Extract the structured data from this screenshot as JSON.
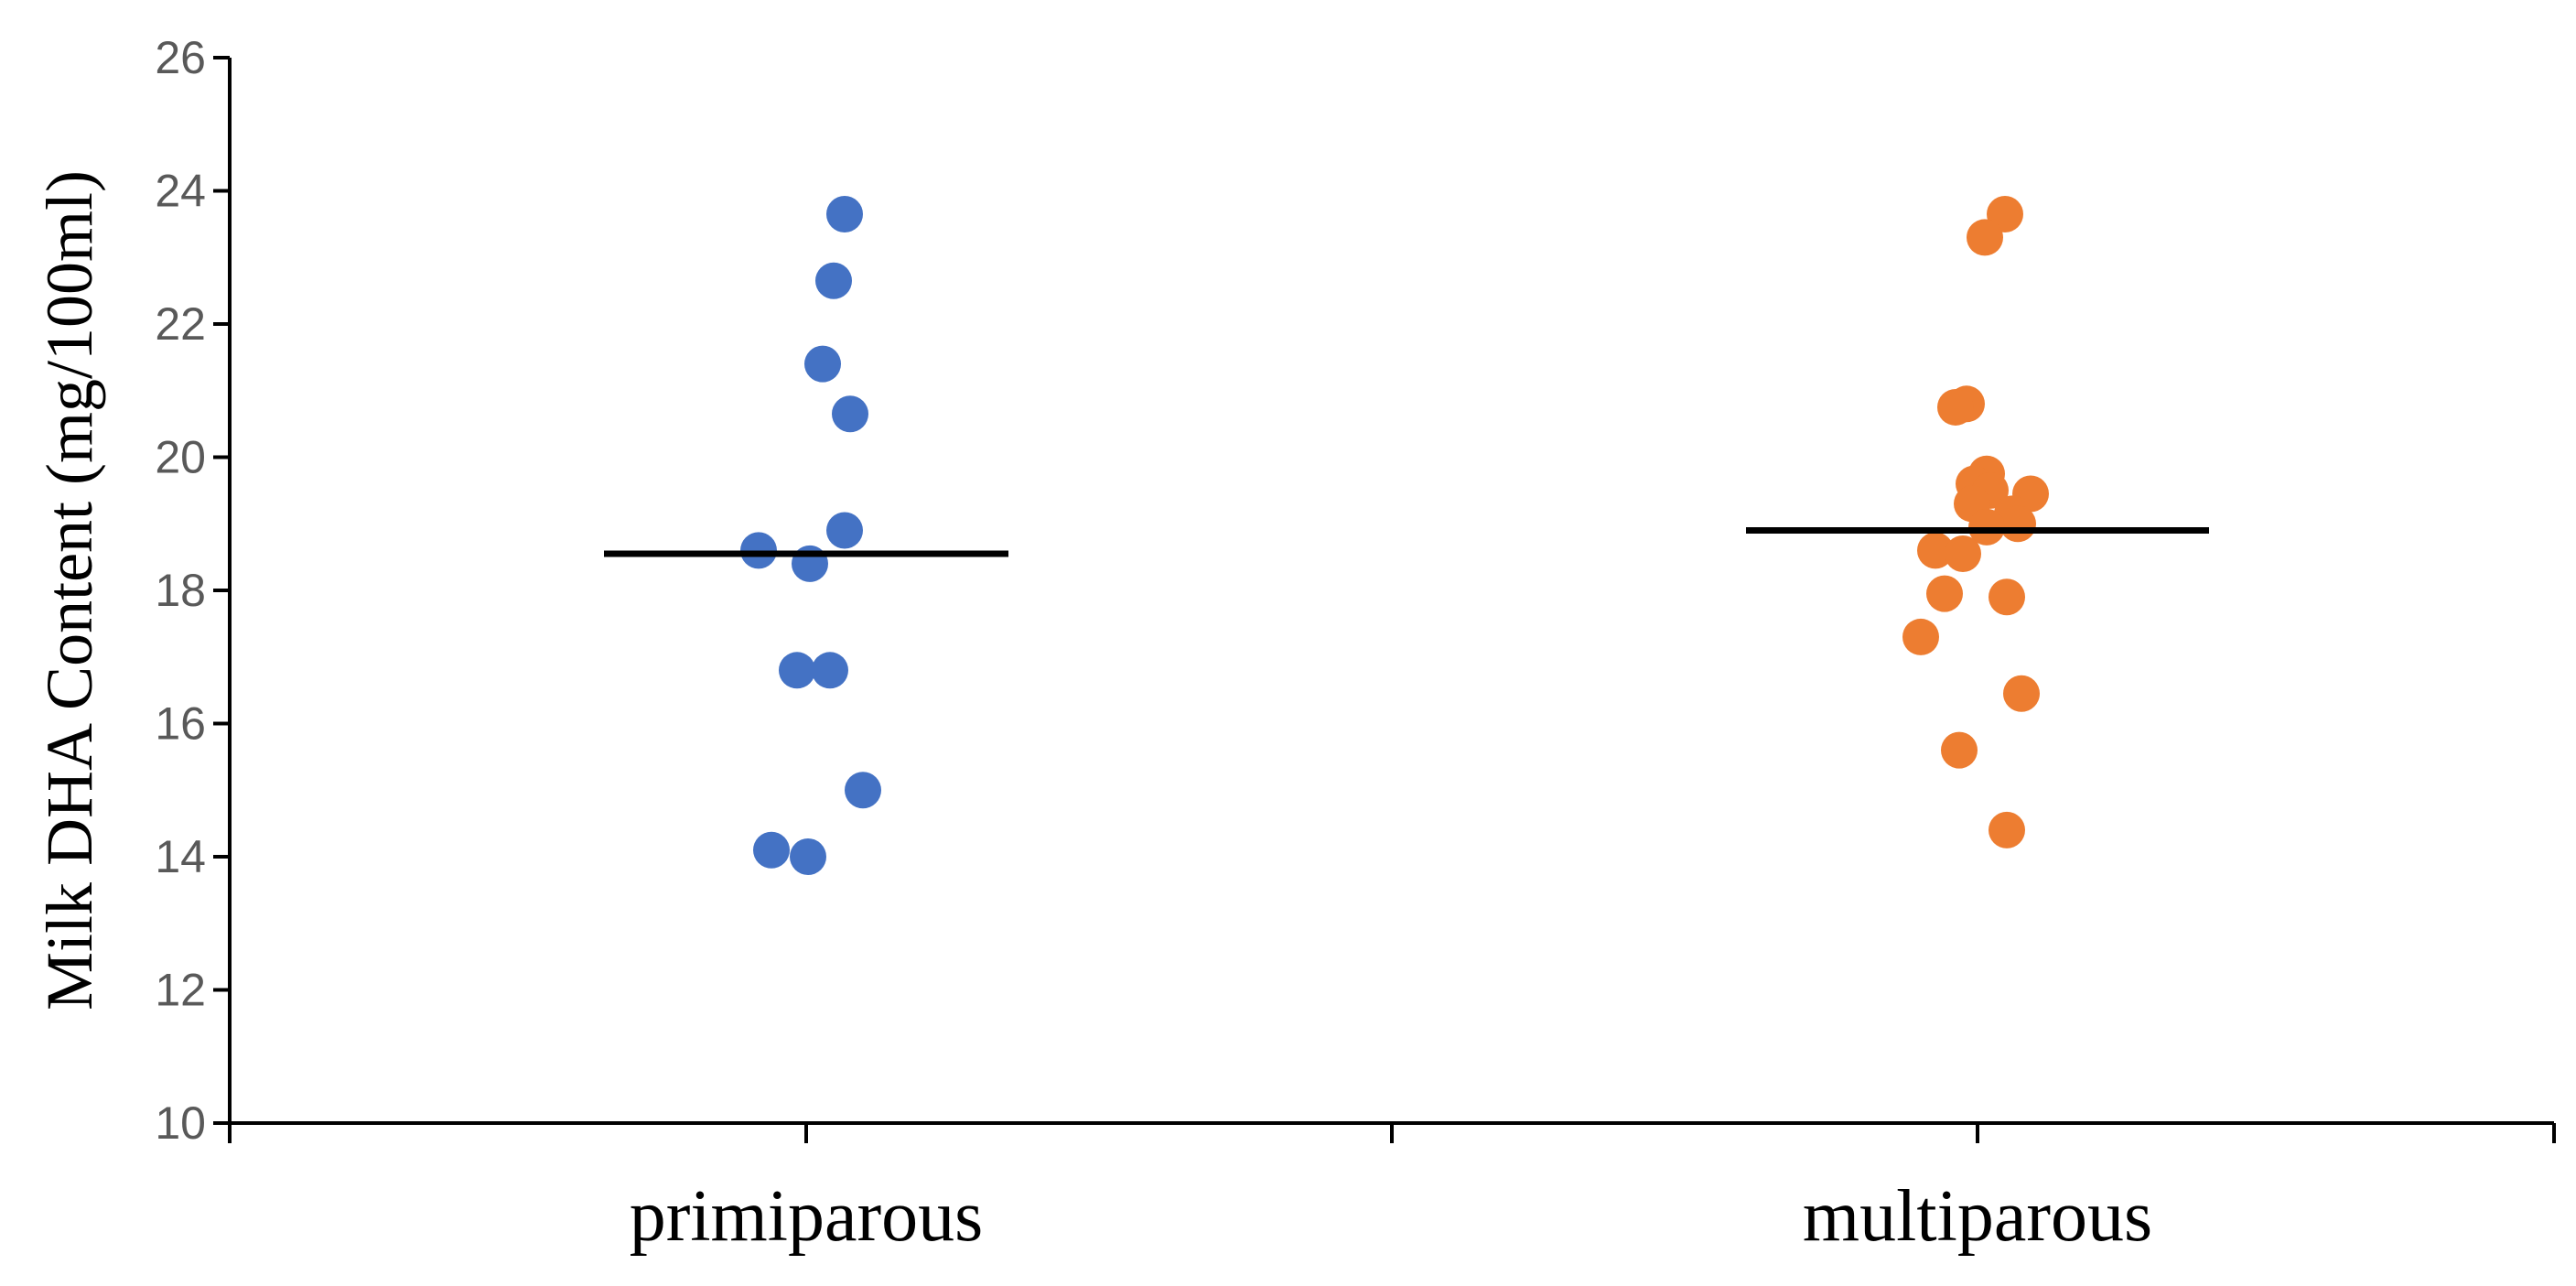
{
  "chart_data": {
    "type": "scatter",
    "title": "",
    "xlabel": "",
    "ylabel": "Milk DHA Content (mg/100ml)",
    "ylim": [
      10,
      26
    ],
    "yticks": [
      10,
      12,
      14,
      16,
      18,
      20,
      22,
      24,
      26
    ],
    "grid": false,
    "legend": "none",
    "categories": [
      "primiparous",
      "multiparous"
    ],
    "series": [
      {
        "category": "primiparous",
        "color": "#4472C4",
        "values": [
          23.65,
          22.65,
          21.4,
          20.65,
          18.9,
          18.6,
          18.4,
          16.8,
          16.8,
          15.0,
          14.1,
          14.0
        ],
        "mean": 18.55
      },
      {
        "category": "multiparous",
        "color": "#ED7D31",
        "values": [
          23.65,
          23.3,
          20.8,
          20.75,
          19.75,
          19.6,
          19.5,
          19.45,
          19.3,
          19.15,
          19.0,
          18.95,
          18.6,
          18.55,
          17.95,
          17.9,
          17.3,
          16.45,
          15.6,
          14.4
        ],
        "mean": 18.9
      }
    ]
  }
}
